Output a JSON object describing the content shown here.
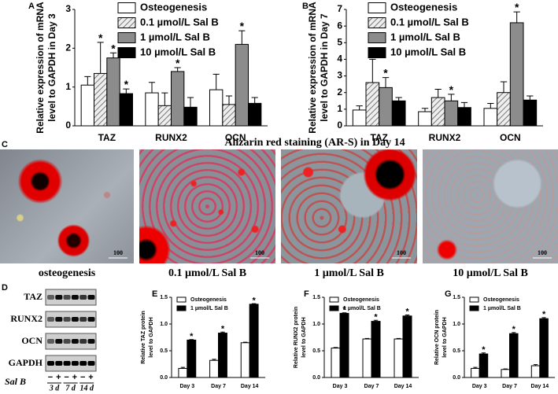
{
  "chart_data": [
    {
      "type": "bar",
      "panel": "A",
      "ylabel": [
        "Relative expression of mRNA",
        "level to GAPDH in Day 3"
      ],
      "categories": [
        "TAZ",
        "RUNX2",
        "OCN"
      ],
      "ylim": [
        0,
        3
      ],
      "yticks": [
        0,
        1,
        2,
        3
      ],
      "marker": "*",
      "series": [
        {
          "name": "Osteogenesis",
          "color": "#ffffff",
          "values": [
            1.05,
            0.85,
            0.93
          ],
          "errors": [
            0.22,
            0.27,
            0.4
          ],
          "significant": [
            false,
            false,
            false
          ]
        },
        {
          "name": "0.1 µmol/L Sal B",
          "color": "#cccccc",
          "pattern": "hatch",
          "values": [
            1.35,
            0.52,
            0.55
          ],
          "errors": [
            0.8,
            0.33,
            0.22
          ],
          "significant": [
            true,
            false,
            false
          ]
        },
        {
          "name": "1 µmol/L Sal B",
          "color": "#8c8c8c",
          "values": [
            1.75,
            1.4,
            2.1
          ],
          "errors": [
            0.13,
            0.1,
            0.35
          ],
          "significant": [
            true,
            true,
            true
          ]
        },
        {
          "name": "10 µmol/L Sal B",
          "color": "#000000",
          "values": [
            0.83,
            0.48,
            0.58
          ],
          "errors": [
            0.12,
            0.25,
            0.15
          ],
          "significant": [
            true,
            false,
            false
          ]
        }
      ]
    },
    {
      "type": "bar",
      "panel": "B",
      "ylabel": [
        "Relative expression of mRNA",
        "level to GAPDH in Day 7"
      ],
      "categories": [
        "TAZ",
        "RUNX2",
        "OCN"
      ],
      "ylim": [
        0,
        7
      ],
      "yticks": [
        0,
        1,
        2,
        3,
        4,
        5,
        6,
        7
      ],
      "marker": "*",
      "series": [
        {
          "name": "Osteogenesis",
          "color": "#ffffff",
          "values": [
            0.95,
            0.85,
            1.05
          ],
          "errors": [
            0.25,
            0.2,
            0.3
          ],
          "significant": [
            false,
            false,
            false
          ]
        },
        {
          "name": "0.1 µmol/L Sal B",
          "color": "#cccccc",
          "pattern": "hatch",
          "values": [
            2.6,
            1.7,
            2.0
          ],
          "errors": [
            1.4,
            0.5,
            0.65
          ],
          "significant": [
            true,
            false,
            false
          ]
        },
        {
          "name": "1 µmol/L Sal B",
          "color": "#8c8c8c",
          "values": [
            2.3,
            1.5,
            6.2
          ],
          "errors": [
            0.6,
            0.4,
            0.65
          ],
          "significant": [
            true,
            true,
            true
          ]
        },
        {
          "name": "10 µmol/L Sal B",
          "color": "#000000",
          "values": [
            1.5,
            1.1,
            1.55
          ],
          "errors": [
            0.2,
            0.3,
            0.25
          ],
          "significant": [
            false,
            false,
            false
          ]
        }
      ]
    },
    {
      "type": "bar",
      "panel": "E",
      "ylabel": [
        "Relative TAZ protein",
        "level to GAPDH"
      ],
      "categories": [
        "Day 3",
        "Day 7",
        "Day 14"
      ],
      "ylim": [
        0,
        1.5
      ],
      "yticks": [
        {
          "value": 0,
          "label": "0.0"
        },
        {
          "value": 0.5,
          "label": "0.5"
        },
        {
          "value": 1,
          "label": "1.0"
        },
        {
          "value": 1.5,
          "label": "1.5"
        }
      ],
      "marker": "*",
      "series": [
        {
          "name": "Osteogenesis",
          "color": "#ffffff",
          "values": [
            0.17,
            0.32,
            0.65
          ],
          "errors": [
            0.02,
            0.02,
            0.01
          ],
          "significant": [
            false,
            false,
            false
          ]
        },
        {
          "name": "1 µmol/L Sal B",
          "color": "#000000",
          "values": [
            0.7,
            0.83,
            1.37
          ],
          "errors": [
            0.01,
            0.02,
            0.01
          ],
          "significant": [
            true,
            true,
            true
          ]
        }
      ]
    },
    {
      "type": "bar",
      "panel": "F",
      "ylabel": [
        "Relative RUNX2 protein",
        "level to GAPDH"
      ],
      "categories": [
        "Day 3",
        "Day 7",
        "Day 14"
      ],
      "ylim": [
        0,
        1.5
      ],
      "yticks": [
        {
          "value": 0,
          "label": "0.0"
        },
        {
          "value": 0.5,
          "label": "0.5"
        },
        {
          "value": 1,
          "label": "1.0"
        },
        {
          "value": 1.5,
          "label": "1.5"
        }
      ],
      "marker": "*",
      "series": [
        {
          "name": "Osteogenesis",
          "color": "#ffffff",
          "values": [
            0.55,
            0.72,
            0.72
          ],
          "errors": [
            0.01,
            0.01,
            0.01
          ],
          "significant": [
            false,
            false,
            false
          ]
        },
        {
          "name": "1 µmol/L Sal B",
          "color": "#000000",
          "values": [
            1.2,
            1.05,
            1.15
          ],
          "errors": [
            0.01,
            0.02,
            0.02
          ],
          "significant": [
            true,
            true,
            true
          ]
        }
      ]
    },
    {
      "type": "bar",
      "panel": "G",
      "ylabel": [
        "Relative OCN protein",
        "level to GAPDH"
      ],
      "categories": [
        "Day 3",
        "Day 7",
        "Day 14"
      ],
      "ylim": [
        0,
        1.5
      ],
      "yticks": [
        {
          "value": 0,
          "label": "0.0"
        },
        {
          "value": 0.5,
          "label": "0.5"
        },
        {
          "value": 1,
          "label": "1.0"
        },
        {
          "value": 1.5,
          "label": "1.5"
        }
      ],
      "marker": "*",
      "series": [
        {
          "name": "Osteogenesis",
          "color": "#ffffff",
          "values": [
            0.17,
            0.15,
            0.22
          ],
          "errors": [
            0.02,
            0.01,
            0.02
          ],
          "significant": [
            false,
            false,
            false
          ]
        },
        {
          "name": "1 µmol/L Sal B",
          "color": "#000000",
          "values": [
            0.44,
            0.82,
            1.1
          ],
          "errors": [
            0.02,
            0.02,
            0.02
          ],
          "significant": [
            true,
            true,
            true
          ]
        }
      ]
    }
  ],
  "staining": {
    "panel": "C",
    "title": "Alizarin red staining (AR-S) in Day 14",
    "scale_bar": "100",
    "captions": [
      "osteogenesis",
      "0.1 µmol/L Sal B",
      "1 µmol/L Sal B",
      "10 µmol/L Sal B"
    ]
  },
  "blot": {
    "panel": "D",
    "rows": [
      "TAZ",
      "RUNX2",
      "OCN",
      "GAPDH"
    ],
    "treatment": "Sal B",
    "lanes": [
      "−",
      "+",
      "−",
      "+",
      "−",
      "+"
    ],
    "timepoints": [
      "3 d",
      "7 d",
      "14 d"
    ]
  }
}
